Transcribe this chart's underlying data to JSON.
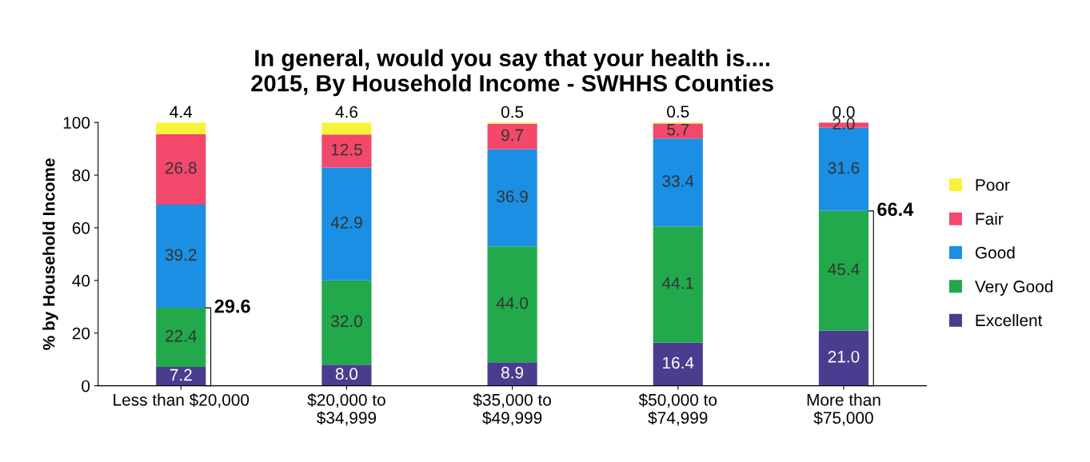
{
  "chart_data": {
    "type": "bar",
    "title": "In general, would you say that your health is....\n2015, By Household Income - SWHHS Counties",
    "ylabel": "% by Household Income",
    "categories": [
      "Less than $20,000",
      "$20,000 to\n$34,999",
      "$35,000 to\n$49,999",
      "$50,000 to\n$74,999",
      "More than\n$75,000"
    ],
    "series": [
      {
        "name": "Excellent",
        "color": "#4a3d8f",
        "values": [
          7.2,
          8.0,
          8.9,
          16.4,
          21.0
        ],
        "value_labels": [
          "7.2",
          "8.0",
          "8.9",
          "16.4",
          "21.0"
        ]
      },
      {
        "name": "Very Good",
        "color": "#22a94b",
        "values": [
          22.4,
          32.0,
          44.0,
          44.1,
          45.4
        ],
        "value_labels": [
          "22.4",
          "32.0",
          "44.0",
          "44.1",
          "45.4"
        ]
      },
      {
        "name": "Good",
        "color": "#1a8fe3",
        "values": [
          39.2,
          42.9,
          36.9,
          33.4,
          31.6
        ],
        "value_labels": [
          "39.2",
          "42.9",
          "36.9",
          "33.4",
          "31.6"
        ]
      },
      {
        "name": "Fair",
        "color": "#f2486c",
        "values": [
          26.8,
          12.5,
          9.7,
          5.7,
          2.0
        ],
        "value_labels": [
          "26.8",
          "12.5",
          "9.7",
          "5.7",
          "2.0"
        ]
      },
      {
        "name": "Poor",
        "color": "#f7f33a",
        "values": [
          4.4,
          4.6,
          0.5,
          0.5,
          0.0
        ],
        "value_labels": [
          "4.4",
          "4.6",
          "0.5",
          "0.5",
          "0.0"
        ]
      }
    ],
    "stacked": true,
    "ylim": [
      0,
      100
    ],
    "yticks": [
      0,
      20,
      40,
      60,
      80,
      100
    ],
    "grid": false,
    "legend": "right",
    "annotations": [
      {
        "text": "29.6",
        "x": "Less than $20,000",
        "y": 29.6
      },
      {
        "text": "66.4",
        "x": "More than\n$75,000",
        "y": 66.4
      }
    ]
  }
}
